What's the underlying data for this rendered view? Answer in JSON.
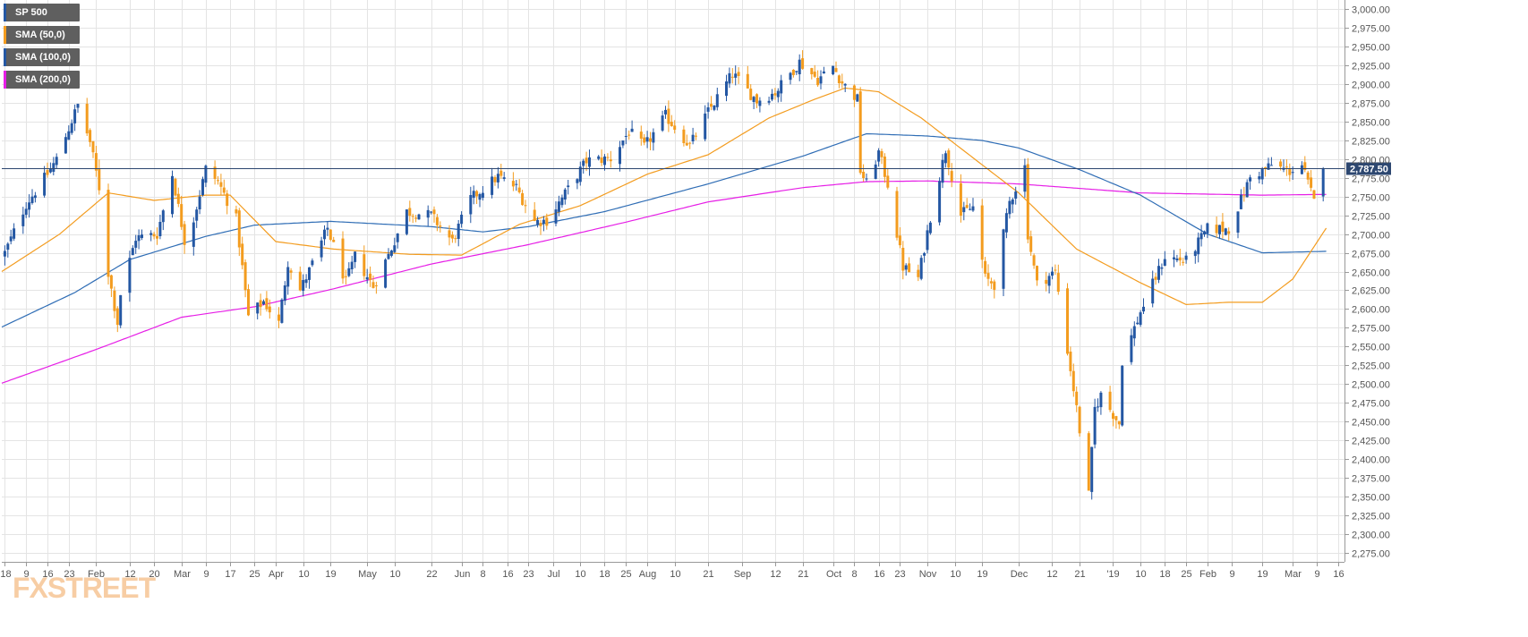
{
  "brand": {
    "logo_text": "FXSTREET"
  },
  "legend": [
    {
      "label": "SP 500",
      "color": "#2457a3"
    },
    {
      "label": "SMA (50,0)",
      "color": "#f39c1f"
    },
    {
      "label": "SMA (100,0)",
      "color": "#2457a3"
    },
    {
      "label": "SMA (200,0)",
      "color": "#e61ee6"
    }
  ],
  "colors": {
    "up": "#2457a3",
    "down": "#f39c1f",
    "sma50": "#f39c1f",
    "sma100": "#2f6db5",
    "sma200": "#e61ee6",
    "grid": "#e4e4e4",
    "price_line": "#2d4770",
    "price_tag": "#2d4770"
  },
  "last_price_label": "2,787.50",
  "chart_data": {
    "type": "candlestick",
    "title": "",
    "symbol": "SP 500",
    "ylim": [
      2262.5,
      3012.5
    ],
    "y_ticks": [
      3000,
      2975,
      2950,
      2925,
      2900,
      2875,
      2850,
      2825,
      2800,
      2775,
      2750,
      2725,
      2700,
      2675,
      2650,
      2625,
      2600,
      2575,
      2550,
      2525,
      2500,
      2475,
      2450,
      2425,
      2400,
      2375,
      2350,
      2325,
      2300,
      2275
    ],
    "y_tick_labels": [
      "3,000.00",
      "2,975.00",
      "2,950.00",
      "2,925.00",
      "2,900.00",
      "2,875.00",
      "2,850.00",
      "2,825.00",
      "2,800.00",
      "2,775.00",
      "2,750.00",
      "2,725.00",
      "2,700.00",
      "2,675.00",
      "2,650.00",
      "2,625.00",
      "2,600.00",
      "2,575.00",
      "2,550.00",
      "2,525.00",
      "2,500.00",
      "2,475.00",
      "2,450.00",
      "2,425.00",
      "2,400.00",
      "2,375.00",
      "2,350.00",
      "2,325.00",
      "2,300.00",
      "2,275.00"
    ],
    "x_ticks": [
      {
        "label": "'18",
        "date": "2018-01-02"
      },
      {
        "label": "9",
        "date": "2018-01-09"
      },
      {
        "label": "16",
        "date": "2018-01-16"
      },
      {
        "label": "23",
        "date": "2018-01-23"
      },
      {
        "label": "Feb",
        "date": "2018-02-01"
      },
      {
        "label": "12",
        "date": "2018-02-12"
      },
      {
        "label": "20",
        "date": "2018-02-20"
      },
      {
        "label": "Mar",
        "date": "2018-03-01"
      },
      {
        "label": "9",
        "date": "2018-03-09"
      },
      {
        "label": "17",
        "date": "2018-03-17"
      },
      {
        "label": "25",
        "date": "2018-03-25"
      },
      {
        "label": "Apr",
        "date": "2018-04-01"
      },
      {
        "label": "10",
        "date": "2018-04-10"
      },
      {
        "label": "19",
        "date": "2018-04-19"
      },
      {
        "label": "May",
        "date": "2018-05-01"
      },
      {
        "label": "10",
        "date": "2018-05-10"
      },
      {
        "label": "22",
        "date": "2018-05-22"
      },
      {
        "label": "Jun",
        "date": "2018-06-01"
      },
      {
        "label": "8",
        "date": "2018-06-08"
      },
      {
        "label": "16",
        "date": "2018-06-16"
      },
      {
        "label": "23",
        "date": "2018-06-23"
      },
      {
        "label": "Jul",
        "date": "2018-07-01"
      },
      {
        "label": "10",
        "date": "2018-07-10"
      },
      {
        "label": "18",
        "date": "2018-07-18"
      },
      {
        "label": "25",
        "date": "2018-07-25"
      },
      {
        "label": "Aug",
        "date": "2018-08-01"
      },
      {
        "label": "10",
        "date": "2018-08-10"
      },
      {
        "label": "21",
        "date": "2018-08-21"
      },
      {
        "label": "Sep",
        "date": "2018-09-01"
      },
      {
        "label": "12",
        "date": "2018-09-12"
      },
      {
        "label": "21",
        "date": "2018-09-21"
      },
      {
        "label": "Oct",
        "date": "2018-10-01"
      },
      {
        "label": "8",
        "date": "2018-10-08"
      },
      {
        "label": "16",
        "date": "2018-10-16"
      },
      {
        "label": "23",
        "date": "2018-10-23"
      },
      {
        "label": "Nov",
        "date": "2018-11-01"
      },
      {
        "label": "10",
        "date": "2018-11-10"
      },
      {
        "label": "19",
        "date": "2018-11-19"
      },
      {
        "label": "Dec",
        "date": "2018-12-01"
      },
      {
        "label": "12",
        "date": "2018-12-12"
      },
      {
        "label": "21",
        "date": "2018-12-21"
      },
      {
        "label": "'19",
        "date": "2019-01-01"
      },
      {
        "label": "10",
        "date": "2019-01-10"
      },
      {
        "label": "18",
        "date": "2019-01-18"
      },
      {
        "label": "25",
        "date": "2019-01-25"
      },
      {
        "label": "Feb",
        "date": "2019-02-01"
      },
      {
        "label": "9",
        "date": "2019-02-09"
      },
      {
        "label": "19",
        "date": "2019-02-19"
      },
      {
        "label": "Mar",
        "date": "2019-03-01"
      },
      {
        "label": "9",
        "date": "2019-03-09"
      },
      {
        "label": "16",
        "date": "2019-03-16"
      }
    ],
    "x_range": [
      "2018-01-01",
      "2019-03-18"
    ],
    "last_price": 2787.5,
    "price_anchors": [
      [
        "2018-01-02",
        2675
      ],
      [
        "2018-01-09",
        2740
      ],
      [
        "2018-01-16",
        2780
      ],
      [
        "2018-01-19",
        2800
      ],
      [
        "2018-01-26",
        2872
      ],
      [
        "2018-01-30",
        2823
      ],
      [
        "2018-02-02",
        2762
      ],
      [
        "2018-02-05",
        2648
      ],
      [
        "2018-02-08",
        2582
      ],
      [
        "2018-02-09",
        2620
      ],
      [
        "2018-02-14",
        2695
      ],
      [
        "2018-02-21",
        2700
      ],
      [
        "2018-02-26",
        2780
      ],
      [
        "2018-03-02",
        2692
      ],
      [
        "2018-03-05",
        2720
      ],
      [
        "2018-03-09",
        2787
      ],
      [
        "2018-03-13",
        2770
      ],
      [
        "2018-03-19",
        2720
      ],
      [
        "2018-03-23",
        2590
      ],
      [
        "2018-03-28",
        2610
      ],
      [
        "2018-04-02",
        2581
      ],
      [
        "2018-04-05",
        2663
      ],
      [
        "2018-04-09",
        2625
      ],
      [
        "2018-04-13",
        2660
      ],
      [
        "2018-04-18",
        2708
      ],
      [
        "2018-04-24",
        2635
      ],
      [
        "2018-04-27",
        2670
      ],
      [
        "2018-05-03",
        2630
      ],
      [
        "2018-05-08",
        2672
      ],
      [
        "2018-05-14",
        2730
      ],
      [
        "2018-05-22",
        2725
      ],
      [
        "2018-05-29",
        2690
      ],
      [
        "2018-06-04",
        2747
      ],
      [
        "2018-06-13",
        2777
      ],
      [
        "2018-06-19",
        2762
      ],
      [
        "2018-06-25",
        2717
      ],
      [
        "2018-06-29",
        2718
      ],
      [
        "2018-07-06",
        2760
      ],
      [
        "2018-07-12",
        2798
      ],
      [
        "2018-07-20",
        2801
      ],
      [
        "2018-07-26",
        2837
      ],
      [
        "2018-07-31",
        2816
      ],
      [
        "2018-08-07",
        2858
      ],
      [
        "2018-08-15",
        2818
      ],
      [
        "2018-08-21",
        2863
      ],
      [
        "2018-08-29",
        2914
      ],
      [
        "2018-09-06",
        2878
      ],
      [
        "2018-09-12",
        2889
      ],
      [
        "2018-09-20",
        2930
      ],
      [
        "2018-09-26",
        2906
      ],
      [
        "2018-10-01",
        2924
      ],
      [
        "2018-10-04",
        2902
      ],
      [
        "2018-10-09",
        2880
      ],
      [
        "2018-10-10",
        2785
      ],
      [
        "2018-10-12",
        2767
      ],
      [
        "2018-10-16",
        2809
      ],
      [
        "2018-10-19",
        2767
      ],
      [
        "2018-10-24",
        2656
      ],
      [
        "2018-10-29",
        2641
      ],
      [
        "2018-11-02",
        2723
      ],
      [
        "2018-11-07",
        2813
      ],
      [
        "2018-11-12",
        2726
      ],
      [
        "2018-11-16",
        2736
      ],
      [
        "2018-11-20",
        2641
      ],
      [
        "2018-11-23",
        2633
      ],
      [
        "2018-11-28",
        2743
      ],
      [
        "2018-12-03",
        2790
      ],
      [
        "2018-12-04",
        2700
      ],
      [
        "2018-12-07",
        2633
      ],
      [
        "2018-12-13",
        2650
      ],
      [
        "2018-12-17",
        2545
      ],
      [
        "2018-12-20",
        2467
      ],
      [
        "2018-12-24",
        2351
      ],
      [
        "2018-12-26",
        2467
      ],
      [
        "2018-12-28",
        2485
      ],
      [
        "2019-01-03",
        2447
      ],
      [
        "2019-01-04",
        2531
      ],
      [
        "2019-01-10",
        2596
      ],
      [
        "2019-01-18",
        2670
      ],
      [
        "2019-01-25",
        2664
      ],
      [
        "2019-02-01",
        2707
      ],
      [
        "2019-02-08",
        2707
      ],
      [
        "2019-02-15",
        2775
      ],
      [
        "2019-02-22",
        2792
      ],
      [
        "2019-02-28",
        2784
      ],
      [
        "2019-03-04",
        2792
      ],
      [
        "2019-03-08",
        2743
      ],
      [
        "2019-03-11",
        2787.5
      ]
    ],
    "sma50_anchors": [
      [
        "2018-01-01",
        2650
      ],
      [
        "2018-01-20",
        2700
      ],
      [
        "2018-02-05",
        2755
      ],
      [
        "2018-02-20",
        2745
      ],
      [
        "2018-03-09",
        2752
      ],
      [
        "2018-03-17",
        2752
      ],
      [
        "2018-04-01",
        2690
      ],
      [
        "2018-04-20",
        2680
      ],
      [
        "2018-05-15",
        2673
      ],
      [
        "2018-06-01",
        2672
      ],
      [
        "2018-06-20",
        2713
      ],
      [
        "2018-07-10",
        2738
      ],
      [
        "2018-08-01",
        2780
      ],
      [
        "2018-08-21",
        2806
      ],
      [
        "2018-09-10",
        2855
      ],
      [
        "2018-09-25",
        2880
      ],
      [
        "2018-10-05",
        2895
      ],
      [
        "2018-10-16",
        2890
      ],
      [
        "2018-10-30",
        2855
      ],
      [
        "2018-11-15",
        2805
      ],
      [
        "2018-12-01",
        2755
      ],
      [
        "2018-12-20",
        2680
      ],
      [
        "2019-01-10",
        2635
      ],
      [
        "2019-01-25",
        2606
      ],
      [
        "2019-02-08",
        2609
      ],
      [
        "2019-02-19",
        2609
      ],
      [
        "2019-03-01",
        2640
      ],
      [
        "2019-03-12",
        2708
      ]
    ],
    "sma100_anchors": [
      [
        "2018-01-01",
        2576
      ],
      [
        "2018-01-25",
        2622
      ],
      [
        "2018-02-12",
        2666
      ],
      [
        "2018-03-09",
        2697
      ],
      [
        "2018-03-25",
        2712
      ],
      [
        "2018-04-19",
        2717
      ],
      [
        "2018-05-22",
        2710
      ],
      [
        "2018-06-08",
        2703
      ],
      [
        "2018-06-23",
        2710
      ],
      [
        "2018-07-18",
        2730
      ],
      [
        "2018-08-21",
        2767
      ],
      [
        "2018-09-21",
        2804
      ],
      [
        "2018-10-12",
        2834
      ],
      [
        "2018-11-01",
        2831
      ],
      [
        "2018-11-19",
        2825
      ],
      [
        "2018-12-01",
        2815
      ],
      [
        "2018-12-21",
        2786
      ],
      [
        "2019-01-10",
        2752
      ],
      [
        "2019-02-01",
        2700
      ],
      [
        "2019-02-19",
        2675
      ],
      [
        "2019-03-12",
        2677
      ]
    ],
    "sma200_anchors": [
      [
        "2018-01-01",
        2501
      ],
      [
        "2018-02-01",
        2546
      ],
      [
        "2018-03-01",
        2589
      ],
      [
        "2018-03-25",
        2603
      ],
      [
        "2018-04-19",
        2626
      ],
      [
        "2018-05-22",
        2660
      ],
      [
        "2018-06-23",
        2686
      ],
      [
        "2018-07-25",
        2716
      ],
      [
        "2018-08-21",
        2743
      ],
      [
        "2018-09-21",
        2762
      ],
      [
        "2018-10-12",
        2770
      ],
      [
        "2018-11-01",
        2771
      ],
      [
        "2018-12-01",
        2767
      ],
      [
        "2019-01-10",
        2755
      ],
      [
        "2019-02-19",
        2752
      ],
      [
        "2019-03-12",
        2753
      ]
    ]
  }
}
